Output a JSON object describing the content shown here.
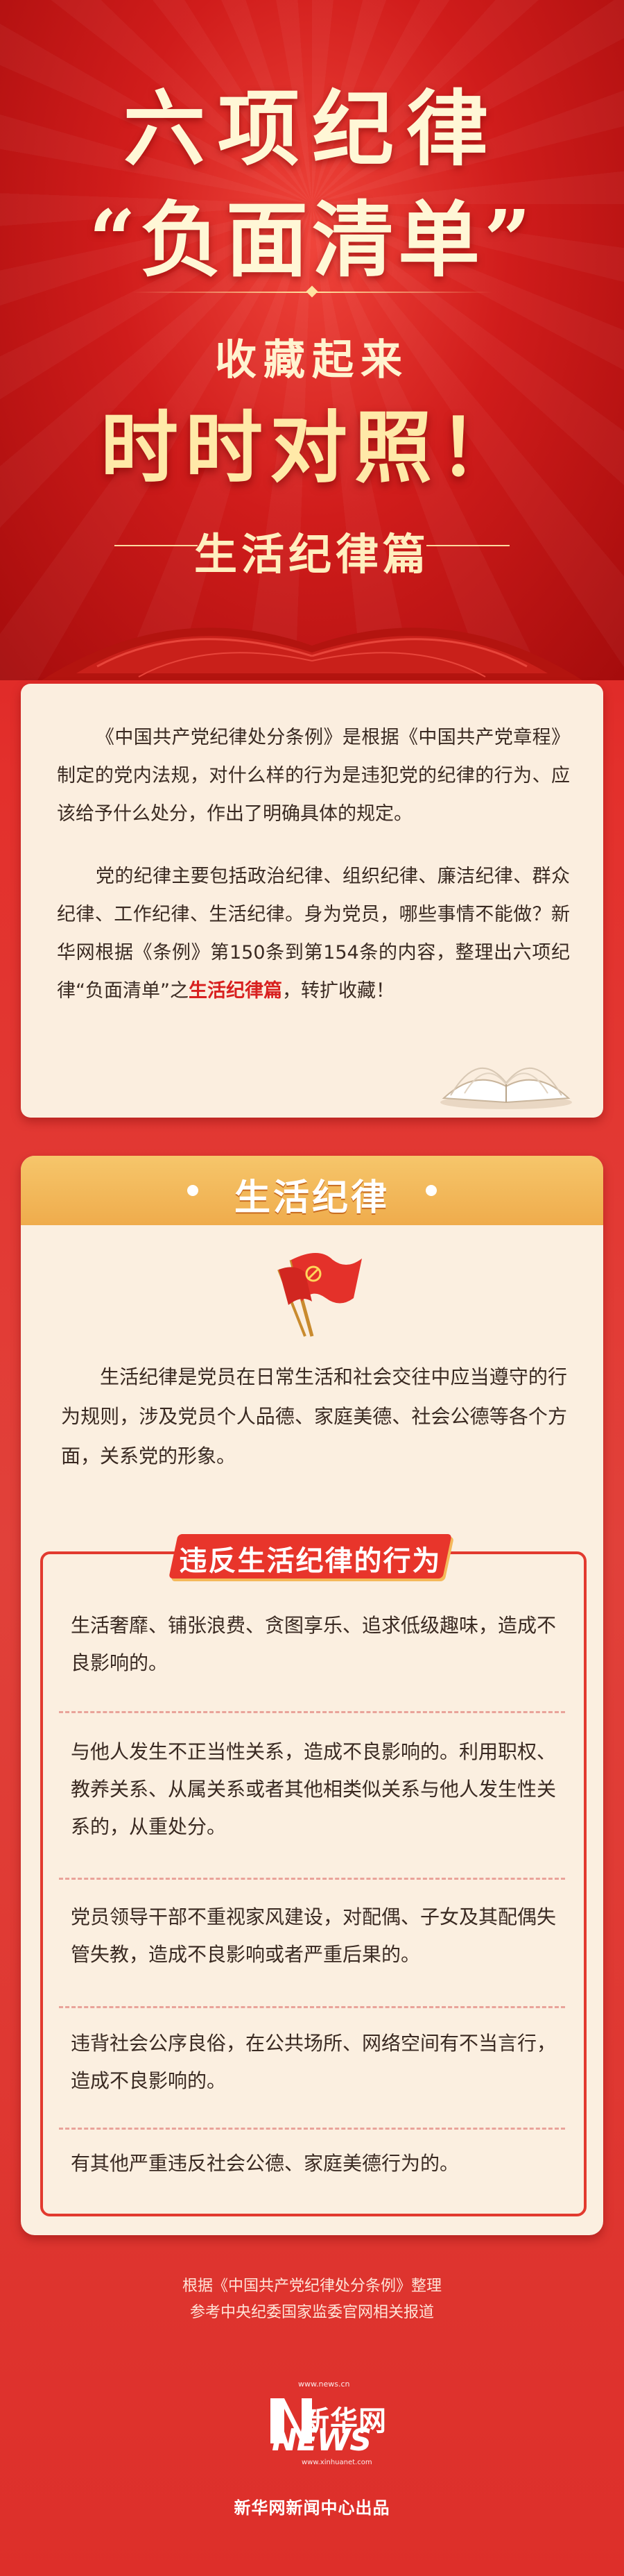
{
  "hero": {
    "title_line1": "六项纪律",
    "title_line2": "“负面清单”",
    "subtitle_line1": "收藏起来",
    "subtitle_line2": "时时对照！",
    "section_label": "生活纪律篇"
  },
  "intro": {
    "p1": "《中国共产党纪律处分条例》是根据《中国共产党章程》制定的党内法规，对什么样的行为是违犯党的纪律的行为、应该给予什么处分，作出了明确具体的规定。",
    "p2_a": "党的纪律主要包括政治纪律、组织纪律、廉洁纪律、群众纪律、工作纪律、生活纪律。身为党员，哪些事情不能做？新华网根据《条例》第150条到第154条的内容，整理出六项纪律“负面清单”之",
    "p2_highlight": "生活纪律篇",
    "p2_b": "，转扩收藏！"
  },
  "main": {
    "header": "生活纪律",
    "description": "生活纪律是党员在日常生活和社会交往中应当遵守的行为规则，涉及党员个人品德、家庭美德、社会公德等各个方面，关系党的形象。",
    "list_title": "违反生活纪律的行为",
    "items": [
      "生活奢靡、铺张浪费、贪图享乐、追求低级趣味，造成不良影响的。",
      "与他人发生不正当性关系，造成不良影响的。利用职权、教养关系、从属关系或者其他相类似关系与他人发生性关系的，从重处分。",
      "党员领导干部不重视家风建设，对配偶、子女及其配偶失管失教，造成不良影响或者严重后果的。",
      "违背社会公序良俗，在公共场所、网络空间有不当言行，造成不良影响的。",
      "有其他严重违反社会公德、家庭美德行为的。"
    ]
  },
  "footer": {
    "source_line1": "根据《中国共产党纪律处分条例》整理",
    "source_line2": "参考中央纪委国家监委官网相关报道",
    "logo_url": "www.news.cn",
    "logo_cn": "新华网",
    "logo_en": "NEWS",
    "logo_sub": "www.xinhuanet.com",
    "producer": "新华网新闻中心出品"
  },
  "colors": {
    "primary_red": "#d8201f",
    "gold": "#efac4c",
    "cream": "#fbefe0"
  }
}
